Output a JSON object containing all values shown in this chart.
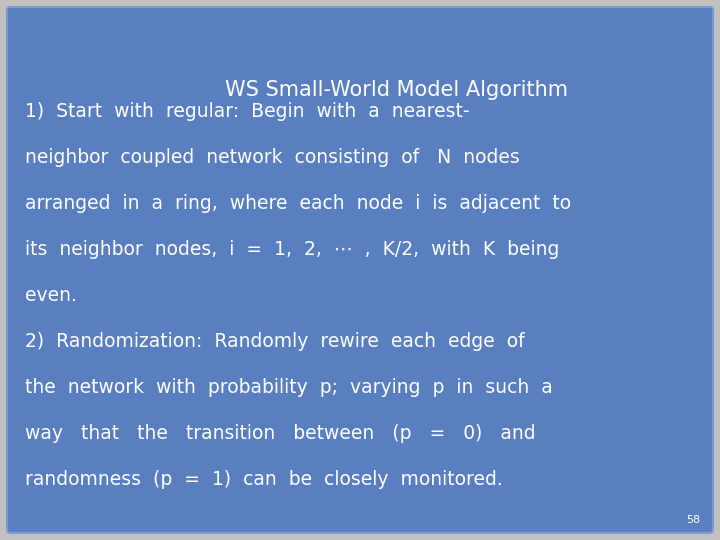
{
  "background_color": "#5a7fc0",
  "slide_bg": "#5a7fc0",
  "outer_bg": "#c0c0c0",
  "text_color": "#ffffff",
  "page_number": "58",
  "title": "WS Small-World Model Algorithm",
  "title_fontsize": 15,
  "body_fontsize": 13.5,
  "page_num_fontsize": 8,
  "body_lines": [
    "1)  Start  with  regular:  Begin  with  a  nearest-",
    "neighbor  coupled  network  consisting  of   N  nodes",
    "arranged  in  a  ring,  where  each  node  i  is  adjacent  to",
    "its  neighbor  nodes,  i  =  1,  2,  ⋯  ,  K/2,  with  K  being",
    "even.",
    "2)  Randomization:  Randomly  rewire  each  edge  of",
    "the  network  with  probability  p;  varying  p  in  such  a",
    "way   that   the   transition   between   (p   =   0)   and",
    "randomness  (p  =  1)  can  be  closely  monitored."
  ]
}
